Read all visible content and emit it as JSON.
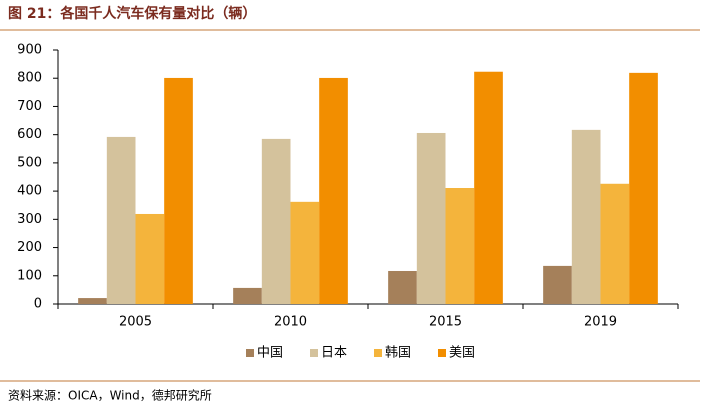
{
  "chart_data": {
    "type": "bar",
    "title": "图 21：各国千人汽车保有量对比（辆）",
    "source": "资料来源：OICA，Wind，德邦研究所",
    "categories": [
      "2005",
      "2010",
      "2015",
      "2019"
    ],
    "series": [
      {
        "name": "中国",
        "color": "#a5805a",
        "values": [
          21,
          57,
          117,
          135
        ]
      },
      {
        "name": "日本",
        "color": "#d4c29c",
        "values": [
          592,
          585,
          606,
          617
        ]
      },
      {
        "name": "韩国",
        "color": "#f4b43c",
        "values": [
          319,
          362,
          411,
          426
        ]
      },
      {
        "name": "美国",
        "color": "#f28e00",
        "values": [
          801,
          801,
          823,
          819
        ]
      }
    ],
    "ylim": [
      0,
      900
    ],
    "yticks": [
      0,
      100,
      200,
      300,
      400,
      500,
      600,
      700,
      800,
      900
    ],
    "grid": false,
    "legend": "bottom"
  }
}
